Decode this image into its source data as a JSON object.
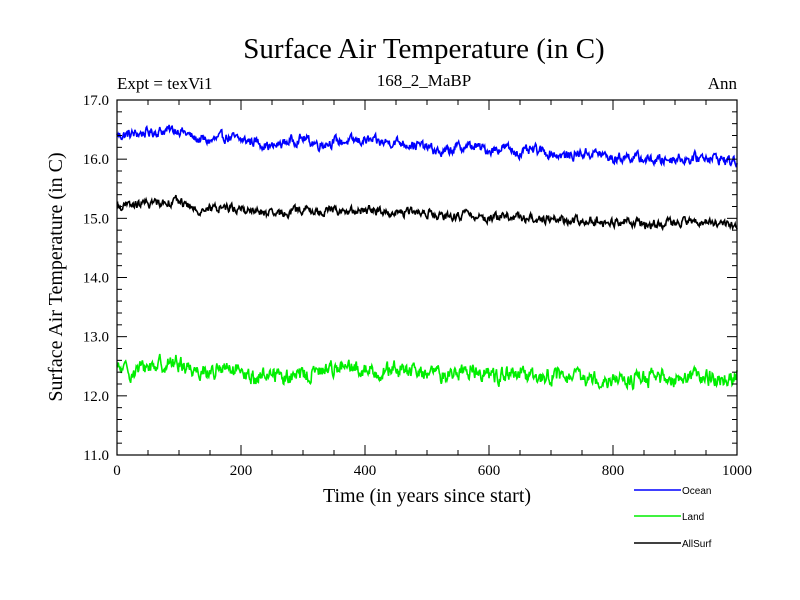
{
  "chart_data": {
    "type": "line",
    "title": "Surface Air Temperature (in C)",
    "subtitle": "168_2_MaBP",
    "expt_label": "Expt = texVi1",
    "period_label": "Ann",
    "xlabel": "Time (in years since start)",
    "ylabel": "Surface Air Temperature (in C)",
    "xlim": [
      0,
      1000
    ],
    "ylim": [
      11.0,
      17.0
    ],
    "x_ticks": [
      0,
      200,
      400,
      600,
      800,
      1000
    ],
    "x_tick_labels": [
      "0",
      "200",
      "400",
      "600",
      "800",
      "1000"
    ],
    "y_ticks": [
      11.0,
      12.0,
      13.0,
      14.0,
      15.0,
      16.0,
      17.0
    ],
    "y_tick_labels": [
      "11.0",
      "12.0",
      "13.0",
      "14.0",
      "15.0",
      "16.0",
      "17.0"
    ],
    "grid": false,
    "legend_position": "bottom-right",
    "series": [
      {
        "name": "Ocean",
        "color": "#0000ff",
        "x": [
          0,
          25,
          50,
          75,
          100,
          125,
          150,
          175,
          200,
          225,
          250,
          275,
          300,
          325,
          350,
          375,
          400,
          425,
          450,
          475,
          500,
          525,
          550,
          575,
          600,
          625,
          650,
          675,
          700,
          725,
          750,
          775,
          800,
          825,
          850,
          875,
          900,
          925,
          950,
          975,
          1000
        ],
        "values": [
          16.4,
          16.42,
          16.45,
          16.48,
          16.5,
          16.35,
          16.3,
          16.38,
          16.32,
          16.3,
          16.2,
          16.3,
          16.35,
          16.25,
          16.3,
          16.3,
          16.32,
          16.28,
          16.3,
          16.25,
          16.2,
          16.1,
          16.2,
          16.22,
          16.15,
          16.2,
          16.1,
          16.15,
          16.1,
          16.05,
          16.1,
          16.1,
          16.0,
          16.05,
          16.0,
          15.98,
          16.02,
          16.0,
          16.05,
          16.0,
          15.95
        ],
        "noise": 0.13
      },
      {
        "name": "Land",
        "color": "#00ee00",
        "x": [
          0,
          25,
          50,
          75,
          100,
          125,
          150,
          175,
          200,
          225,
          250,
          275,
          300,
          325,
          350,
          375,
          400,
          425,
          450,
          475,
          500,
          525,
          550,
          575,
          600,
          625,
          650,
          675,
          700,
          725,
          750,
          775,
          800,
          825,
          850,
          875,
          900,
          925,
          950,
          975,
          1000
        ],
        "values": [
          12.45,
          12.4,
          12.5,
          12.55,
          12.55,
          12.45,
          12.4,
          12.45,
          12.35,
          12.3,
          12.4,
          12.3,
          12.35,
          12.4,
          12.5,
          12.45,
          12.45,
          12.4,
          12.45,
          12.4,
          12.4,
          12.35,
          12.4,
          12.45,
          12.35,
          12.35,
          12.35,
          12.3,
          12.35,
          12.3,
          12.3,
          12.3,
          12.3,
          12.25,
          12.3,
          12.3,
          12.3,
          12.35,
          12.3,
          12.3,
          12.3
        ],
        "noise": 0.2
      },
      {
        "name": "AllSurf",
        "color": "#000000",
        "x": [
          0,
          25,
          50,
          75,
          100,
          125,
          150,
          175,
          200,
          225,
          250,
          275,
          300,
          325,
          350,
          375,
          400,
          425,
          450,
          475,
          500,
          525,
          550,
          575,
          600,
          625,
          650,
          675,
          700,
          725,
          750,
          775,
          800,
          825,
          850,
          875,
          900,
          925,
          950,
          975,
          1000
        ],
        "values": [
          15.2,
          15.22,
          15.25,
          15.28,
          15.3,
          15.15,
          15.15,
          15.2,
          15.15,
          15.12,
          15.05,
          15.1,
          15.15,
          15.1,
          15.15,
          15.1,
          15.15,
          15.12,
          15.1,
          15.1,
          15.1,
          15.0,
          15.05,
          15.05,
          15.0,
          15.05,
          15.0,
          15.0,
          15.0,
          14.95,
          14.98,
          14.95,
          14.92,
          14.95,
          14.9,
          14.9,
          14.95,
          14.92,
          14.95,
          14.92,
          14.85
        ],
        "noise": 0.11
      }
    ]
  }
}
